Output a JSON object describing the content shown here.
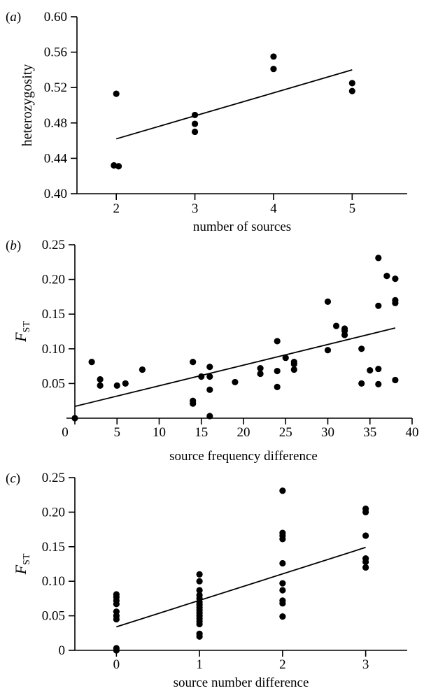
{
  "chart_data": [
    {
      "panel": "a",
      "type": "scatter",
      "title": "",
      "xlabel": "number of sources",
      "ylabel": "heterozygosity",
      "xlim": [
        1.5,
        5.7
      ],
      "ylim": [
        0.4,
        0.6
      ],
      "xticks": [
        2,
        3,
        4,
        5
      ],
      "yticks": [
        0.4,
        0.44,
        0.48,
        0.52,
        0.56,
        0.6
      ],
      "ytick_labels": [
        "0.40",
        "0.44",
        "0.48",
        "0.52",
        "0.56",
        "0.60"
      ],
      "points": [
        [
          1.97,
          0.432
        ],
        [
          2.03,
          0.431
        ],
        [
          2.0,
          0.513
        ],
        [
          3.0,
          0.47
        ],
        [
          3.0,
          0.479
        ],
        [
          3.0,
          0.489
        ],
        [
          4.0,
          0.541
        ],
        [
          4.0,
          0.555
        ],
        [
          5.0,
          0.516
        ],
        [
          5.0,
          0.525
        ]
      ],
      "fit_line": [
        [
          2.0,
          0.462
        ],
        [
          5.0,
          0.54
        ]
      ]
    },
    {
      "panel": "b",
      "type": "scatter",
      "title": "",
      "xlabel": "source frequency difference",
      "ylabel": "FST",
      "xlim": [
        0,
        40
      ],
      "ylim": [
        0,
        0.25
      ],
      "xticks": [
        0,
        5,
        10,
        15,
        20,
        25,
        30,
        35,
        40
      ],
      "yticks": [
        0.05,
        0.1,
        0.15,
        0.2,
        0.25
      ],
      "ytick_labels": [
        "0.05",
        "0.10",
        "0.15",
        "0.20",
        "0.25"
      ],
      "points": [
        [
          0,
          0.0
        ],
        [
          2,
          0.081
        ],
        [
          3,
          0.056
        ],
        [
          3,
          0.047
        ],
        [
          5,
          0.047
        ],
        [
          6,
          0.05
        ],
        [
          8,
          0.07
        ],
        [
          14,
          0.081
        ],
        [
          14,
          0.025
        ],
        [
          14,
          0.021
        ],
        [
          15,
          0.06
        ],
        [
          16,
          0.074
        ],
        [
          16,
          0.06
        ],
        [
          16,
          0.041
        ],
        [
          16,
          0.003
        ],
        [
          19,
          0.052
        ],
        [
          22,
          0.072
        ],
        [
          22,
          0.064
        ],
        [
          24,
          0.111
        ],
        [
          24,
          0.068
        ],
        [
          24,
          0.045
        ],
        [
          25,
          0.087
        ],
        [
          26,
          0.081
        ],
        [
          26,
          0.078
        ],
        [
          26,
          0.07
        ],
        [
          30,
          0.168
        ],
        [
          30,
          0.098
        ],
        [
          31,
          0.133
        ],
        [
          32,
          0.129
        ],
        [
          32,
          0.126
        ],
        [
          32,
          0.12
        ],
        [
          34,
          0.1
        ],
        [
          34,
          0.05
        ],
        [
          35,
          0.069
        ],
        [
          36,
          0.231
        ],
        [
          36,
          0.162
        ],
        [
          36,
          0.071
        ],
        [
          36,
          0.049
        ],
        [
          37,
          0.205
        ],
        [
          38,
          0.201
        ],
        [
          38,
          0.17
        ],
        [
          38,
          0.166
        ],
        [
          38,
          0.055
        ]
      ],
      "fit_line": [
        [
          0,
          0.017
        ],
        [
          38,
          0.13
        ]
      ]
    },
    {
      "panel": "c",
      "type": "scatter",
      "title": "",
      "xlabel": "source number difference",
      "ylabel": "FST",
      "xlim": [
        -0.5,
        3.5
      ],
      "ylim": [
        0,
        0.25
      ],
      "xticks": [
        0,
        1,
        2,
        3
      ],
      "yticks": [
        0,
        0.05,
        0.1,
        0.15,
        0.2,
        0.25
      ],
      "ytick_labels": [
        "0",
        "0.05",
        "0.10",
        "0.15",
        "0.20",
        "0.25"
      ],
      "points": [
        [
          0,
          0.081
        ],
        [
          0,
          0.077
        ],
        [
          0,
          0.072
        ],
        [
          0,
          0.067
        ],
        [
          0,
          0.056
        ],
        [
          0,
          0.05
        ],
        [
          0,
          0.045
        ],
        [
          0,
          0.003
        ],
        [
          0,
          0.0
        ],
        [
          1,
          0.11
        ],
        [
          1,
          0.1
        ],
        [
          1,
          0.087
        ],
        [
          1,
          0.08
        ],
        [
          1,
          0.075
        ],
        [
          1,
          0.07
        ],
        [
          1,
          0.066
        ],
        [
          1,
          0.062
        ],
        [
          1,
          0.058
        ],
        [
          1,
          0.054
        ],
        [
          1,
          0.05
        ],
        [
          1,
          0.046
        ],
        [
          1,
          0.042
        ],
        [
          1,
          0.038
        ],
        [
          1,
          0.024
        ],
        [
          1,
          0.02
        ],
        [
          2,
          0.231
        ],
        [
          2,
          0.17
        ],
        [
          2,
          0.166
        ],
        [
          2,
          0.161
        ],
        [
          2,
          0.126
        ],
        [
          2,
          0.097
        ],
        [
          2,
          0.087
        ],
        [
          2,
          0.072
        ],
        [
          2,
          0.068
        ],
        [
          2,
          0.049
        ],
        [
          3,
          0.205
        ],
        [
          3,
          0.2
        ],
        [
          3,
          0.166
        ],
        [
          3,
          0.133
        ],
        [
          3,
          0.128
        ],
        [
          3,
          0.12
        ]
      ],
      "fit_line": [
        [
          0,
          0.034
        ],
        [
          3,
          0.149
        ]
      ]
    }
  ]
}
